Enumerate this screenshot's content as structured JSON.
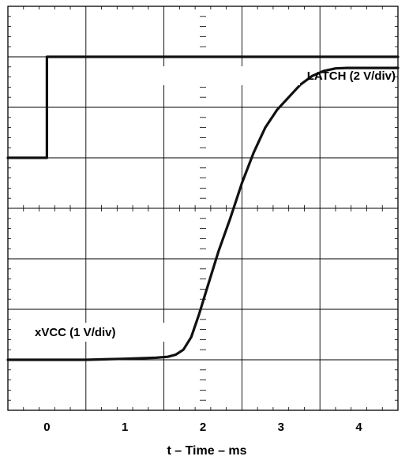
{
  "chart_data": {
    "type": "line",
    "xlabel": "t – Time – ms",
    "xlim": [
      -0.5,
      4.5
    ],
    "xticks": [
      0,
      1,
      2,
      3,
      4
    ],
    "xtick_labels": [
      "0",
      "1",
      "2",
      "3",
      "4"
    ],
    "grid": true,
    "grid_divisions": {
      "x": 5,
      "y": 8,
      "minor_per_div": 5
    },
    "series": [
      {
        "name": "LATCH (2 V/div)",
        "units": "divisions",
        "points": [
          [
            -0.5,
            5.0
          ],
          [
            0.0,
            5.0
          ],
          [
            0.0,
            7.0
          ],
          [
            4.5,
            7.0
          ]
        ]
      },
      {
        "name": "xVCC (1 V/div)",
        "units": "divisions",
        "points": [
          [
            -0.5,
            1.0
          ],
          [
            0.5,
            1.0
          ],
          [
            1.0,
            1.02
          ],
          [
            1.4,
            1.04
          ],
          [
            1.55,
            1.06
          ],
          [
            1.65,
            1.1
          ],
          [
            1.75,
            1.2
          ],
          [
            1.85,
            1.45
          ],
          [
            1.95,
            1.9
          ],
          [
            2.05,
            2.4
          ],
          [
            2.2,
            3.15
          ],
          [
            2.35,
            3.8
          ],
          [
            2.5,
            4.5
          ],
          [
            2.65,
            5.1
          ],
          [
            2.8,
            5.6
          ],
          [
            2.95,
            5.95
          ],
          [
            3.1,
            6.2
          ],
          [
            3.25,
            6.45
          ],
          [
            3.4,
            6.62
          ],
          [
            3.55,
            6.72
          ],
          [
            3.7,
            6.77
          ],
          [
            3.85,
            6.78
          ],
          [
            4.5,
            6.78
          ]
        ]
      }
    ]
  },
  "colors": {
    "trace": "#111111",
    "grid": "#000000",
    "background": "#ffffff"
  }
}
